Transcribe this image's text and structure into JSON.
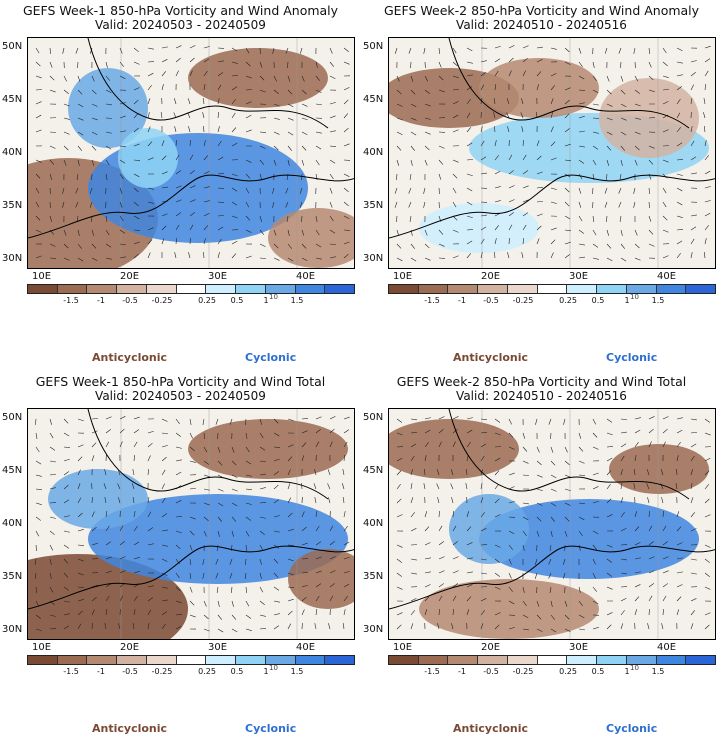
{
  "panels": [
    {
      "title": "GEFS Week-1 850-hPa Vorticity and Wind Anomaly",
      "valid": "Valid: 20240503 - 20240509"
    },
    {
      "title": "GEFS Week-2 850-hPa Vorticity and Wind Anomaly",
      "valid": "Valid: 20240510 - 20240516"
    },
    {
      "title": "GEFS Week-1 850-hPa Vorticity and Wind Total",
      "valid": "Valid: 20240503 - 20240509"
    },
    {
      "title": "GEFS Week-2 850-hPa Vorticity and Wind Total",
      "valid": "Valid: 20240510 - 20240516"
    }
  ],
  "lat_labels": [
    "50N",
    "45N",
    "40N",
    "35N",
    "30N"
  ],
  "lon_labels": [
    "10E",
    "20E",
    "30E",
    "40E"
  ],
  "colorbar": {
    "ticks": [
      "-1.5",
      "-1",
      "-0.5",
      "-0.25",
      "0.25",
      "0.5",
      "1",
      "1.5"
    ],
    "unit": "10",
    "colors": [
      "#7a4a35",
      "#9b6b52",
      "#b58a72",
      "#d2b3a2",
      "#ead8cd",
      "#ffffff",
      "#cdefff",
      "#8fd3f5",
      "#6aa9e6",
      "#3f86e0",
      "#2a66d8"
    ]
  },
  "legend": {
    "anticyclonic": "Anticyclonic",
    "cyclonic": "Cyclonic"
  }
}
